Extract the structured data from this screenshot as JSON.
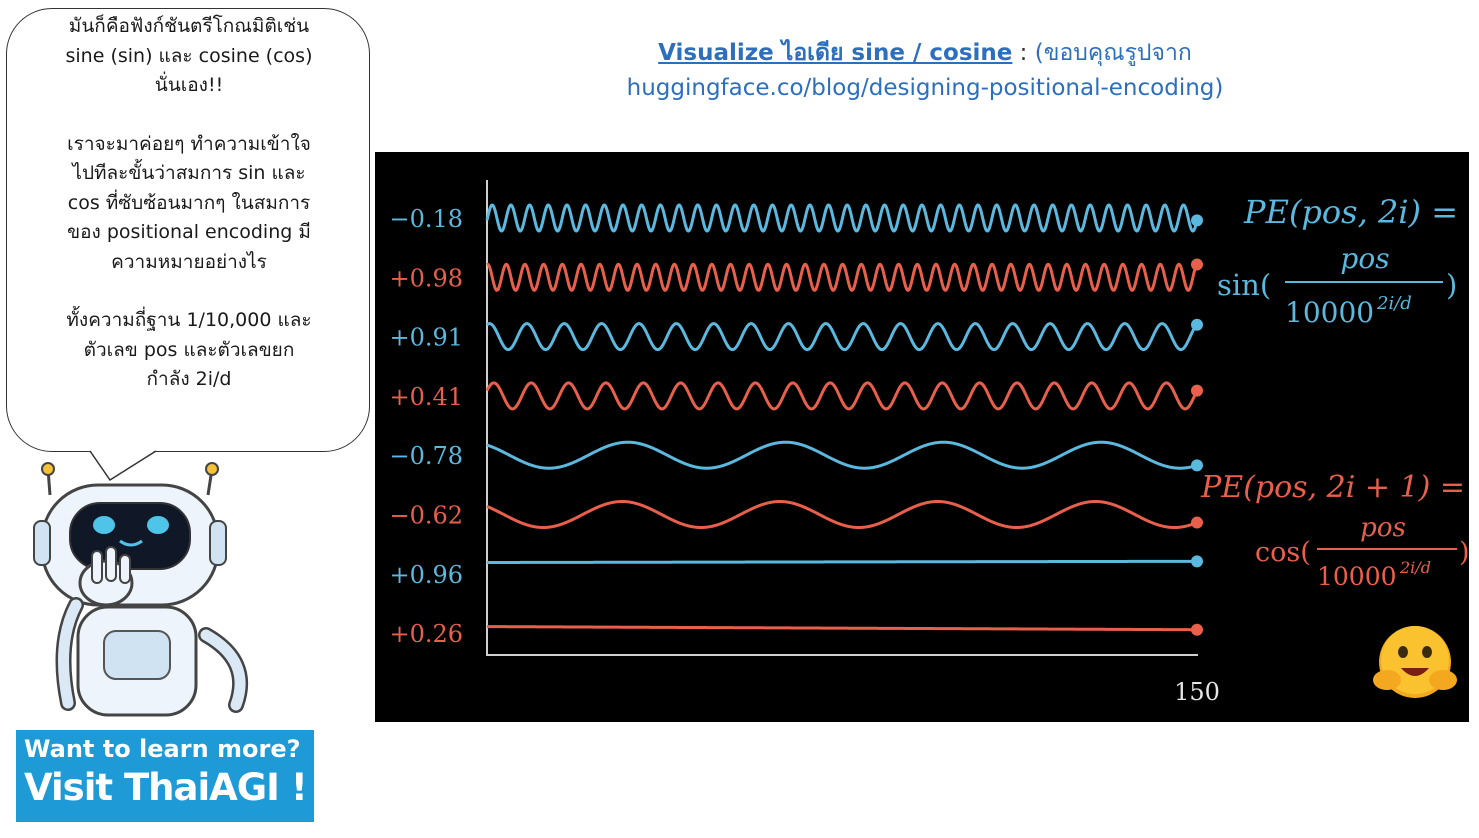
{
  "bubble": {
    "paragraphs": [
      [
        "มันก็คือฟังก์ชันตรีโกณมิติเช่น",
        "sine (sin) และ cosine (cos)",
        "นั่นเอง!!"
      ],
      [
        "เราจะมาค่อยๆ ทำความเข้าใจ",
        "ไปทีละขั้นว่าสมการ sin และ",
        "cos ที่ซับซ้อนมากๆ ในสมการ",
        "ของ positional encoding มี",
        "ความหมายอย่างไร"
      ],
      [
        "ทั้งความถี่ฐาน 1/10,000 และ",
        "ตัวเลข pos และตัวเลขยก",
        "กำลัง 2i/d"
      ]
    ]
  },
  "title": {
    "link_text": "Visualize ไอเดีย sine / cosine",
    "colon": " : ",
    "rest": "(ขอบคุณรูปจาก",
    "line2": "huggingface.co/blog/designing-positional-encoding)"
  },
  "cta": {
    "line1": "Want to learn more?",
    "line2": "Visit ThaiAGI !"
  },
  "colors": {
    "blue": "#5bb8de",
    "red": "#e8604c",
    "axis": "#cfcfcf",
    "cta_bg": "#1e9bd7",
    "title_link": "#2c6fbf"
  },
  "chart_data": {
    "type": "line",
    "x_end_label": "150",
    "series": [
      {
        "label": "−0.18",
        "color": "blue",
        "kind": "sine",
        "cycles": 38,
        "end_value": -0.18
      },
      {
        "label": "+0.98",
        "color": "red",
        "kind": "sine",
        "cycles": 38,
        "end_value": 0.98
      },
      {
        "label": "+0.91",
        "color": "blue",
        "kind": "sine",
        "cycles": 19,
        "end_value": 0.91
      },
      {
        "label": "+0.41",
        "color": "red",
        "kind": "sine",
        "cycles": 19,
        "end_value": 0.41
      },
      {
        "label": "−0.78",
        "color": "blue",
        "kind": "sine",
        "cycles": 4.5,
        "end_value": -0.78
      },
      {
        "label": "−0.62",
        "color": "red",
        "kind": "sine",
        "cycles": 4.5,
        "end_value": -0.62
      },
      {
        "label": "+0.96",
        "color": "blue",
        "kind": "line",
        "start_value": 0.87,
        "end_value": 0.96
      },
      {
        "label": "+0.26",
        "color": "red",
        "kind": "line",
        "start_value": 0.5,
        "end_value": 0.26
      }
    ],
    "formulas": {
      "sin": {
        "lhs": "PE(pos, 2i) =",
        "fn": "sin(",
        "num": "pos",
        "den_base": "10000",
        "den_exp": "2i/d",
        "close": ")"
      },
      "cos": {
        "lhs": "PE(pos, 2i + 1) =",
        "fn": "cos(",
        "num": "pos",
        "den_base": "10000",
        "den_exp": "2i/d",
        "close": ")"
      }
    }
  }
}
